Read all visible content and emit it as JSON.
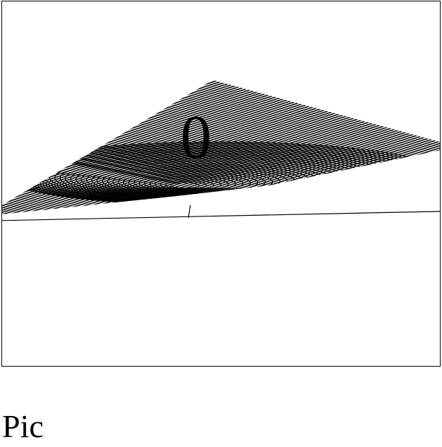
{
  "figure": {
    "label": "0",
    "caption": "Pic",
    "ink_color": "#000000",
    "paper_color": "#ffffff"
  }
}
